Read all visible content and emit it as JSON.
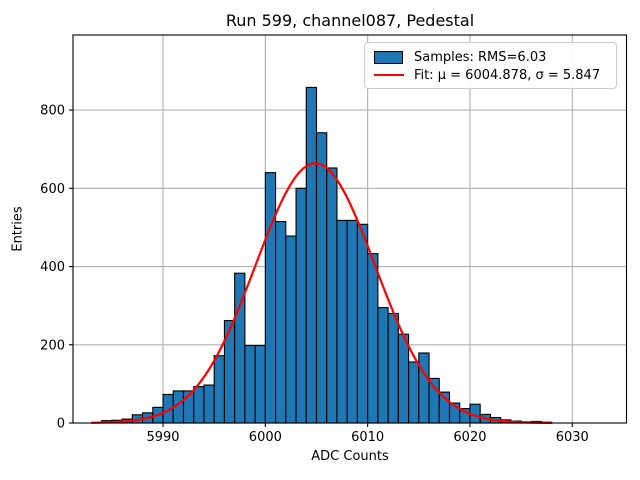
{
  "chart_data": {
    "type": "bar",
    "subtype": "histogram",
    "title": "Run 599, channel087, Pedestal",
    "xlabel": "ADC Counts",
    "ylabel": "Entries",
    "bin_start": 5984,
    "bin_width": 1,
    "counts": [
      6,
      7,
      10,
      21,
      26,
      40,
      73,
      82,
      82,
      93,
      97,
      172,
      262,
      383,
      198,
      198,
      640,
      515,
      478,
      600,
      858,
      742,
      652,
      518,
      518,
      508,
      433,
      295,
      280,
      227,
      156,
      179,
      114,
      79,
      51,
      37,
      48,
      22,
      14,
      8,
      5,
      3,
      4,
      2
    ],
    "fit": {
      "mu": 6004.878,
      "sigma": 5.847,
      "amplitude": 664,
      "x_min": 5983,
      "x_max": 6028
    },
    "stats": {
      "rms": 6.03
    },
    "xlim": [
      5981.2,
      6035.3
    ],
    "ylim": [
      0,
      992
    ],
    "xticks": [
      5990,
      6000,
      6010,
      6020,
      6030
    ],
    "yticks": [
      0,
      200,
      400,
      600,
      800
    ],
    "grid": true,
    "legend_position": "upper right",
    "legend": [
      {
        "label": "Samples: RMS=6.03",
        "marker": "patch",
        "color": "#1f77b4"
      },
      {
        "label": "Fit: μ = 6004.878, σ = 5.847",
        "marker": "line",
        "color": "#ff0000"
      }
    ],
    "colors": {
      "bar_fill": "#1f77b4",
      "bar_edge": "#000000",
      "fit_line": "#ff0000",
      "grid": "#b0b0b0",
      "axes_edge": "#000000",
      "background": "#ffffff"
    }
  }
}
